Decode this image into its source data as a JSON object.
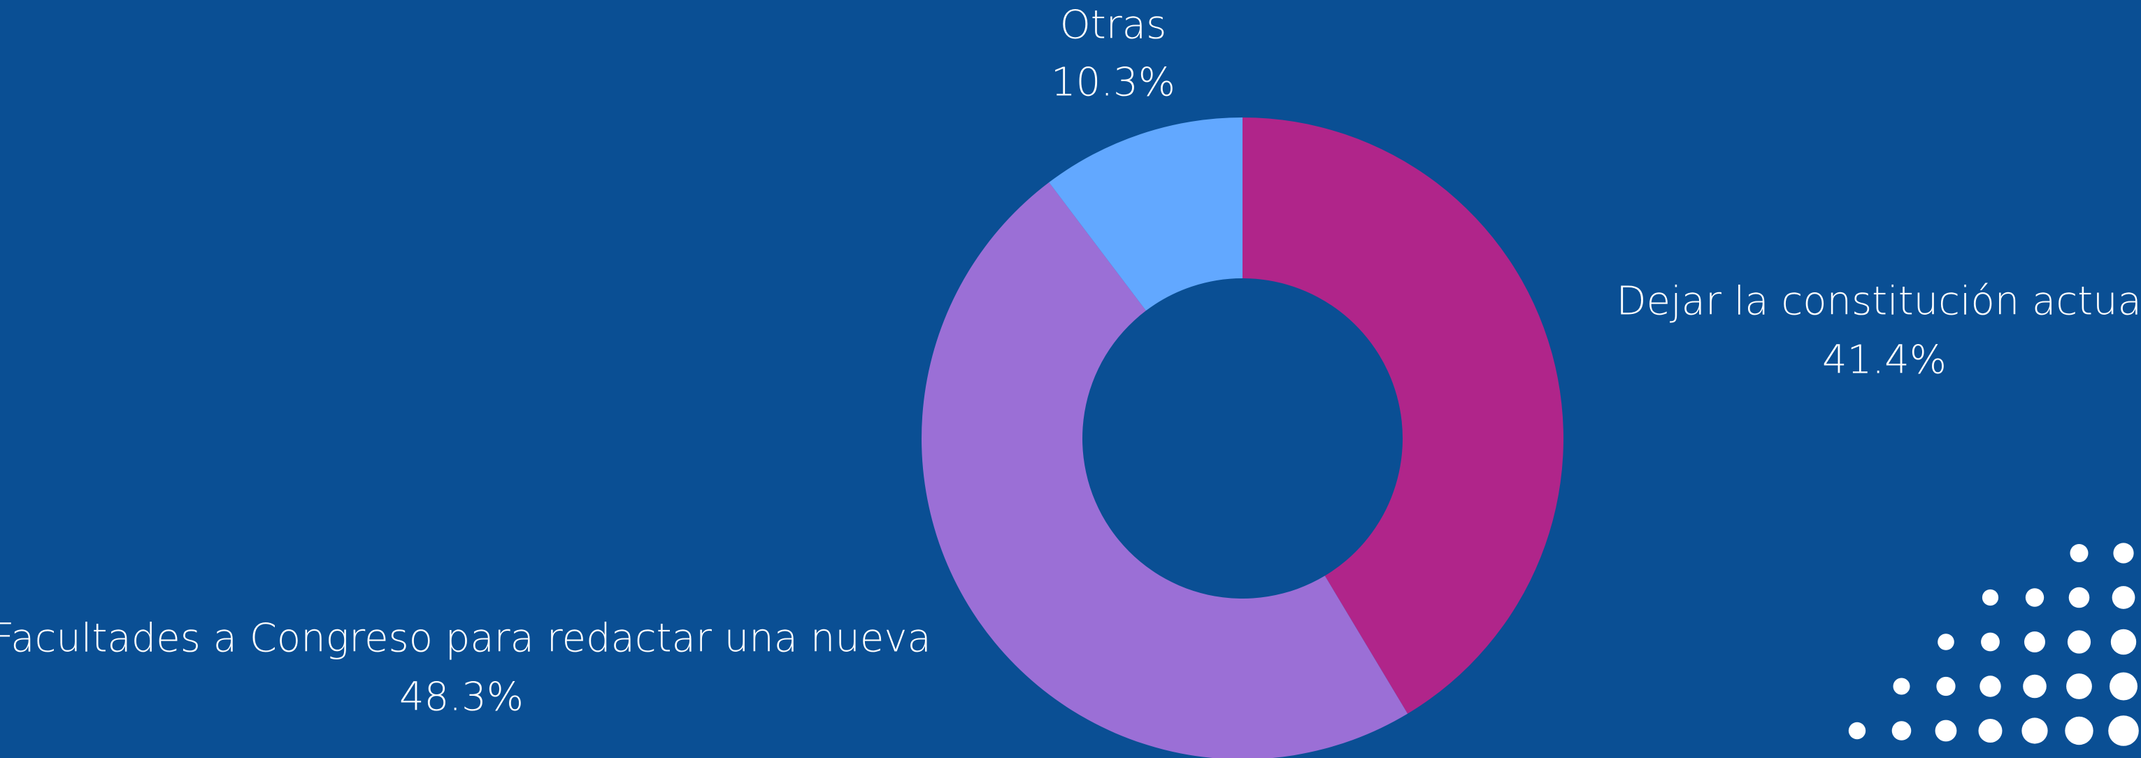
{
  "chart_data": {
    "type": "pie",
    "categories": [
      "Dejar la constitución actual",
      "Facultades a Congreso para redactar una nueva",
      "Otras"
    ],
    "values": [
      41.4,
      48.3,
      10.3
    ],
    "value_labels": [
      "41.4%",
      "48.3%",
      "10.3%"
    ],
    "colors": [
      "#b0258a",
      "#9b6fd6",
      "#62a8ff"
    ]
  }
}
